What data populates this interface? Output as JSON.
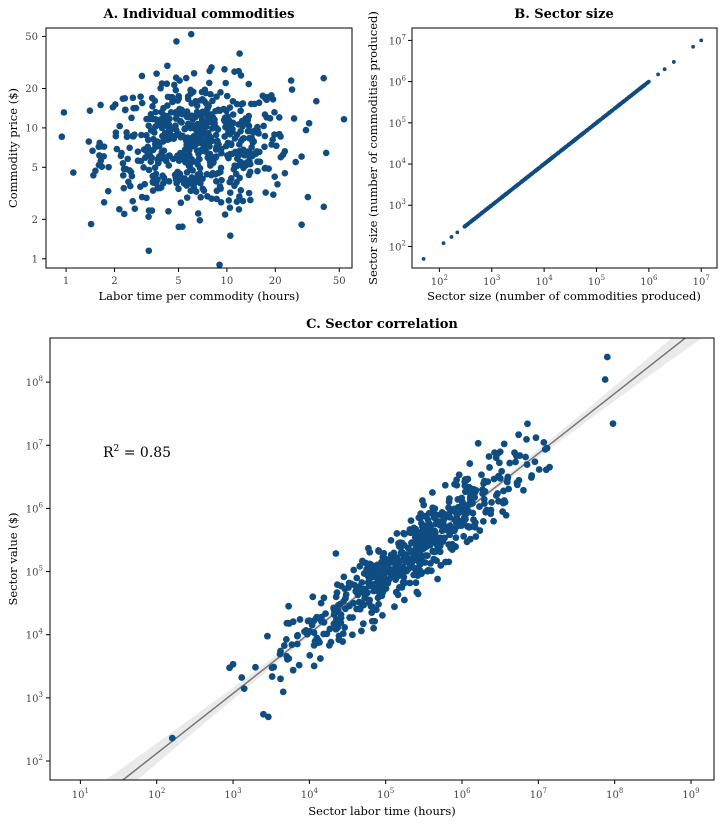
{
  "colors": {
    "points": "#0f4c81",
    "fit_line": "#777777",
    "ribbon": "#d9d9d9"
  },
  "chart_data": [
    {
      "id": "A",
      "type": "scatter",
      "title": "A.  Individual commodities",
      "xlabel": "Labor time per commodity (hours)",
      "ylabel": "Commodity price ($)",
      "xscale": "log",
      "yscale": "log",
      "xlim": [
        0.75,
        60
      ],
      "ylim": [
        0.85,
        58
      ],
      "xticks": [
        1,
        2,
        5,
        10,
        20,
        50
      ],
      "xtick_labels": [
        "1",
        "2",
        "5",
        "10",
        "20",
        "50"
      ],
      "yticks": [
        1,
        2,
        5,
        10,
        20,
        50
      ],
      "ytick_labels": [
        "1",
        "2",
        "5",
        "10",
        "20",
        "50"
      ],
      "grid": false,
      "points_generated": {
        "count": 600,
        "distribution": "lognormal",
        "x_median": 6.5,
        "x_log10_sd": 0.29,
        "y_median": 7.5,
        "y_log10_sd": 0.24,
        "correlation": 0.0
      },
      "points": [
        [
          6,
          52
        ],
        [
          1.6,
          5.2
        ],
        [
          2.3,
          2.2
        ],
        [
          9,
          0.9
        ],
        [
          10.5,
          1.5
        ],
        [
          40,
          24
        ],
        [
          36,
          16
        ],
        [
          12,
          37
        ]
      ]
    },
    {
      "id": "B",
      "type": "scatter",
      "title": "B.  Sector size",
      "xlabel": "Sector size (number of commodities produced)",
      "ylabel": "Sector size (number of commodities produced)",
      "xscale": "log",
      "yscale": "log",
      "xlim": [
        30,
        20000000
      ],
      "ylim": [
        30,
        20000000
      ],
      "xticks": [
        100,
        1000,
        10000,
        100000,
        1000000,
        10000000
      ],
      "xtick_exponents": [
        "2",
        "3",
        "4",
        "5",
        "6",
        "7"
      ],
      "yticks": [
        100,
        1000,
        10000,
        100000,
        1000000,
        10000000
      ],
      "ytick_exponents": [
        "2",
        "3",
        "4",
        "5",
        "6",
        "7"
      ],
      "tick_base": "10",
      "grid": false,
      "relation": "y = x",
      "x_range": [
        50,
        10000000
      ],
      "points_generated": {
        "count": 600,
        "dense_range": [
          300,
          1000000
        ]
      },
      "points": [
        [
          50,
          50
        ],
        [
          120,
          120
        ],
        [
          170,
          170
        ],
        [
          220,
          220
        ],
        [
          1500000,
          1500000
        ],
        [
          2000000,
          2000000
        ],
        [
          3000000,
          3000000
        ],
        [
          7000000,
          7000000
        ],
        [
          10000000,
          10000000
        ]
      ]
    },
    {
      "id": "C",
      "type": "scatter",
      "title": "C.  Sector correlation",
      "xlabel": "Sector labor time (hours)",
      "ylabel": "Sector value ($)",
      "xscale": "log",
      "yscale": "log",
      "xlim": [
        4,
        2000000000
      ],
      "ylim": [
        50,
        500000000
      ],
      "xticks": [
        10,
        100,
        1000,
        10000,
        100000,
        1000000,
        10000000,
        100000000,
        1000000000
      ],
      "xtick_exponents": [
        "1",
        "2",
        "3",
        "4",
        "5",
        "6",
        "7",
        "8",
        "9"
      ],
      "yticks": [
        100,
        1000,
        10000,
        100000,
        1000000,
        10000000,
        100000000
      ],
      "ytick_exponents": [
        "2",
        "3",
        "4",
        "5",
        "6",
        "7",
        "8"
      ],
      "tick_base": "10",
      "grid": false,
      "annotation": {
        "text": "R",
        "superscript": "2",
        "value": " = 0.85"
      },
      "fit_line": {
        "intercept_log10": 0.22,
        "slope": 0.95
      },
      "points_generated": {
        "count": 580,
        "log10_x_mean": 5.3,
        "log10_x_sd": 0.75,
        "log10_y_residual_sd": 0.28
      },
      "points": [
        [
          160,
          230
        ],
        [
          2500,
          550
        ],
        [
          2900,
          500
        ],
        [
          900,
          3000
        ],
        [
          1000,
          3400
        ],
        [
          1300,
          2100
        ],
        [
          1400,
          1400
        ],
        [
          80000000,
          250000000
        ],
        [
          75000000,
          110000000
        ],
        [
          95000000,
          22000000
        ],
        [
          14000000,
          4500000
        ],
        [
          13000000,
          9000000
        ]
      ]
    }
  ]
}
